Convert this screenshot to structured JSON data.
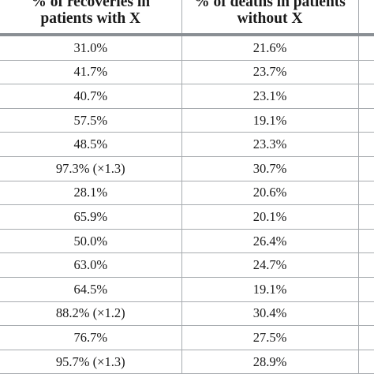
{
  "table": {
    "headers": [
      "% of recoveries in patients with X",
      "% of deaths in patients without X",
      ""
    ],
    "rows": [
      [
        "31.0%",
        "21.6%"
      ],
      [
        "41.7%",
        "23.7%"
      ],
      [
        "40.7%",
        "23.1%"
      ],
      [
        "57.5%",
        "19.1%"
      ],
      [
        "48.5%",
        "23.3%"
      ],
      [
        "97.3% (×1.3)",
        "30.7%"
      ],
      [
        "28.1%",
        "20.6%"
      ],
      [
        "65.9%",
        "20.1%"
      ],
      [
        "50.0%",
        "26.4%"
      ],
      [
        "63.0%",
        "24.7%"
      ],
      [
        "64.5%",
        "19.1%"
      ],
      [
        "88.2% (×1.2)",
        "30.4%"
      ],
      [
        "76.7%",
        "27.5%"
      ],
      [
        "95.7% (×1.3)",
        "28.9%"
      ]
    ]
  }
}
